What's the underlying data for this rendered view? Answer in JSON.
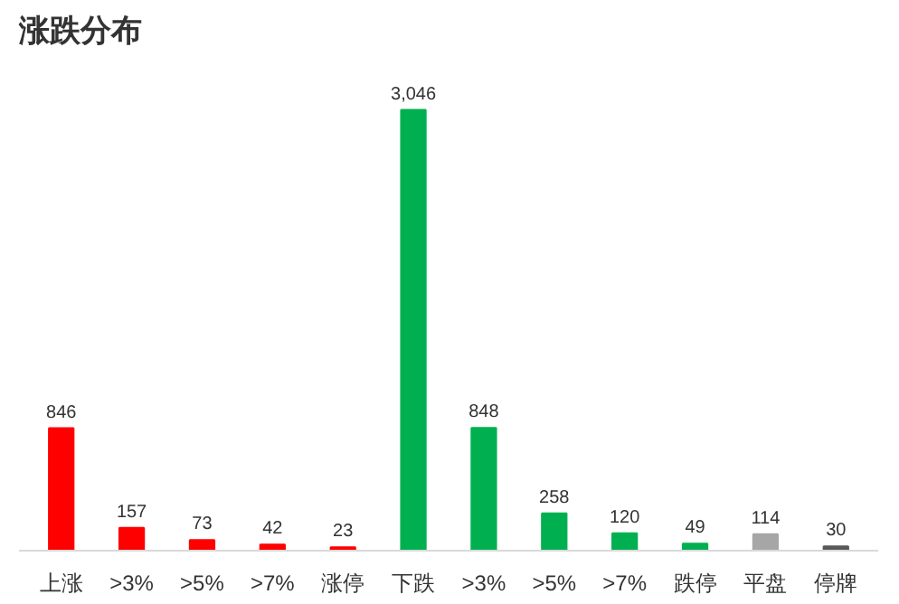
{
  "chart_data": {
    "type": "bar",
    "title": "涨跌分布",
    "categories": [
      "上涨",
      ">3%",
      ">5%",
      ">7%",
      "涨停",
      "下跌",
      ">3%",
      ">5%",
      ">7%",
      "跌停",
      "平盘",
      "停牌"
    ],
    "values": [
      846,
      157,
      73,
      42,
      23,
      3046,
      848,
      258,
      120,
      49,
      114,
      30
    ],
    "colors": [
      "#ff0000",
      "#ff0000",
      "#ff0000",
      "#ff0000",
      "#ff0000",
      "#00b050",
      "#00b050",
      "#00b050",
      "#00b050",
      "#00b050",
      "#a6a6a6",
      "#595959"
    ],
    "value_labels": [
      "846",
      "157",
      "73",
      "42",
      "23",
      "3,046",
      "848",
      "258",
      "120",
      "49",
      "114",
      "30"
    ],
    "grid": false
  }
}
